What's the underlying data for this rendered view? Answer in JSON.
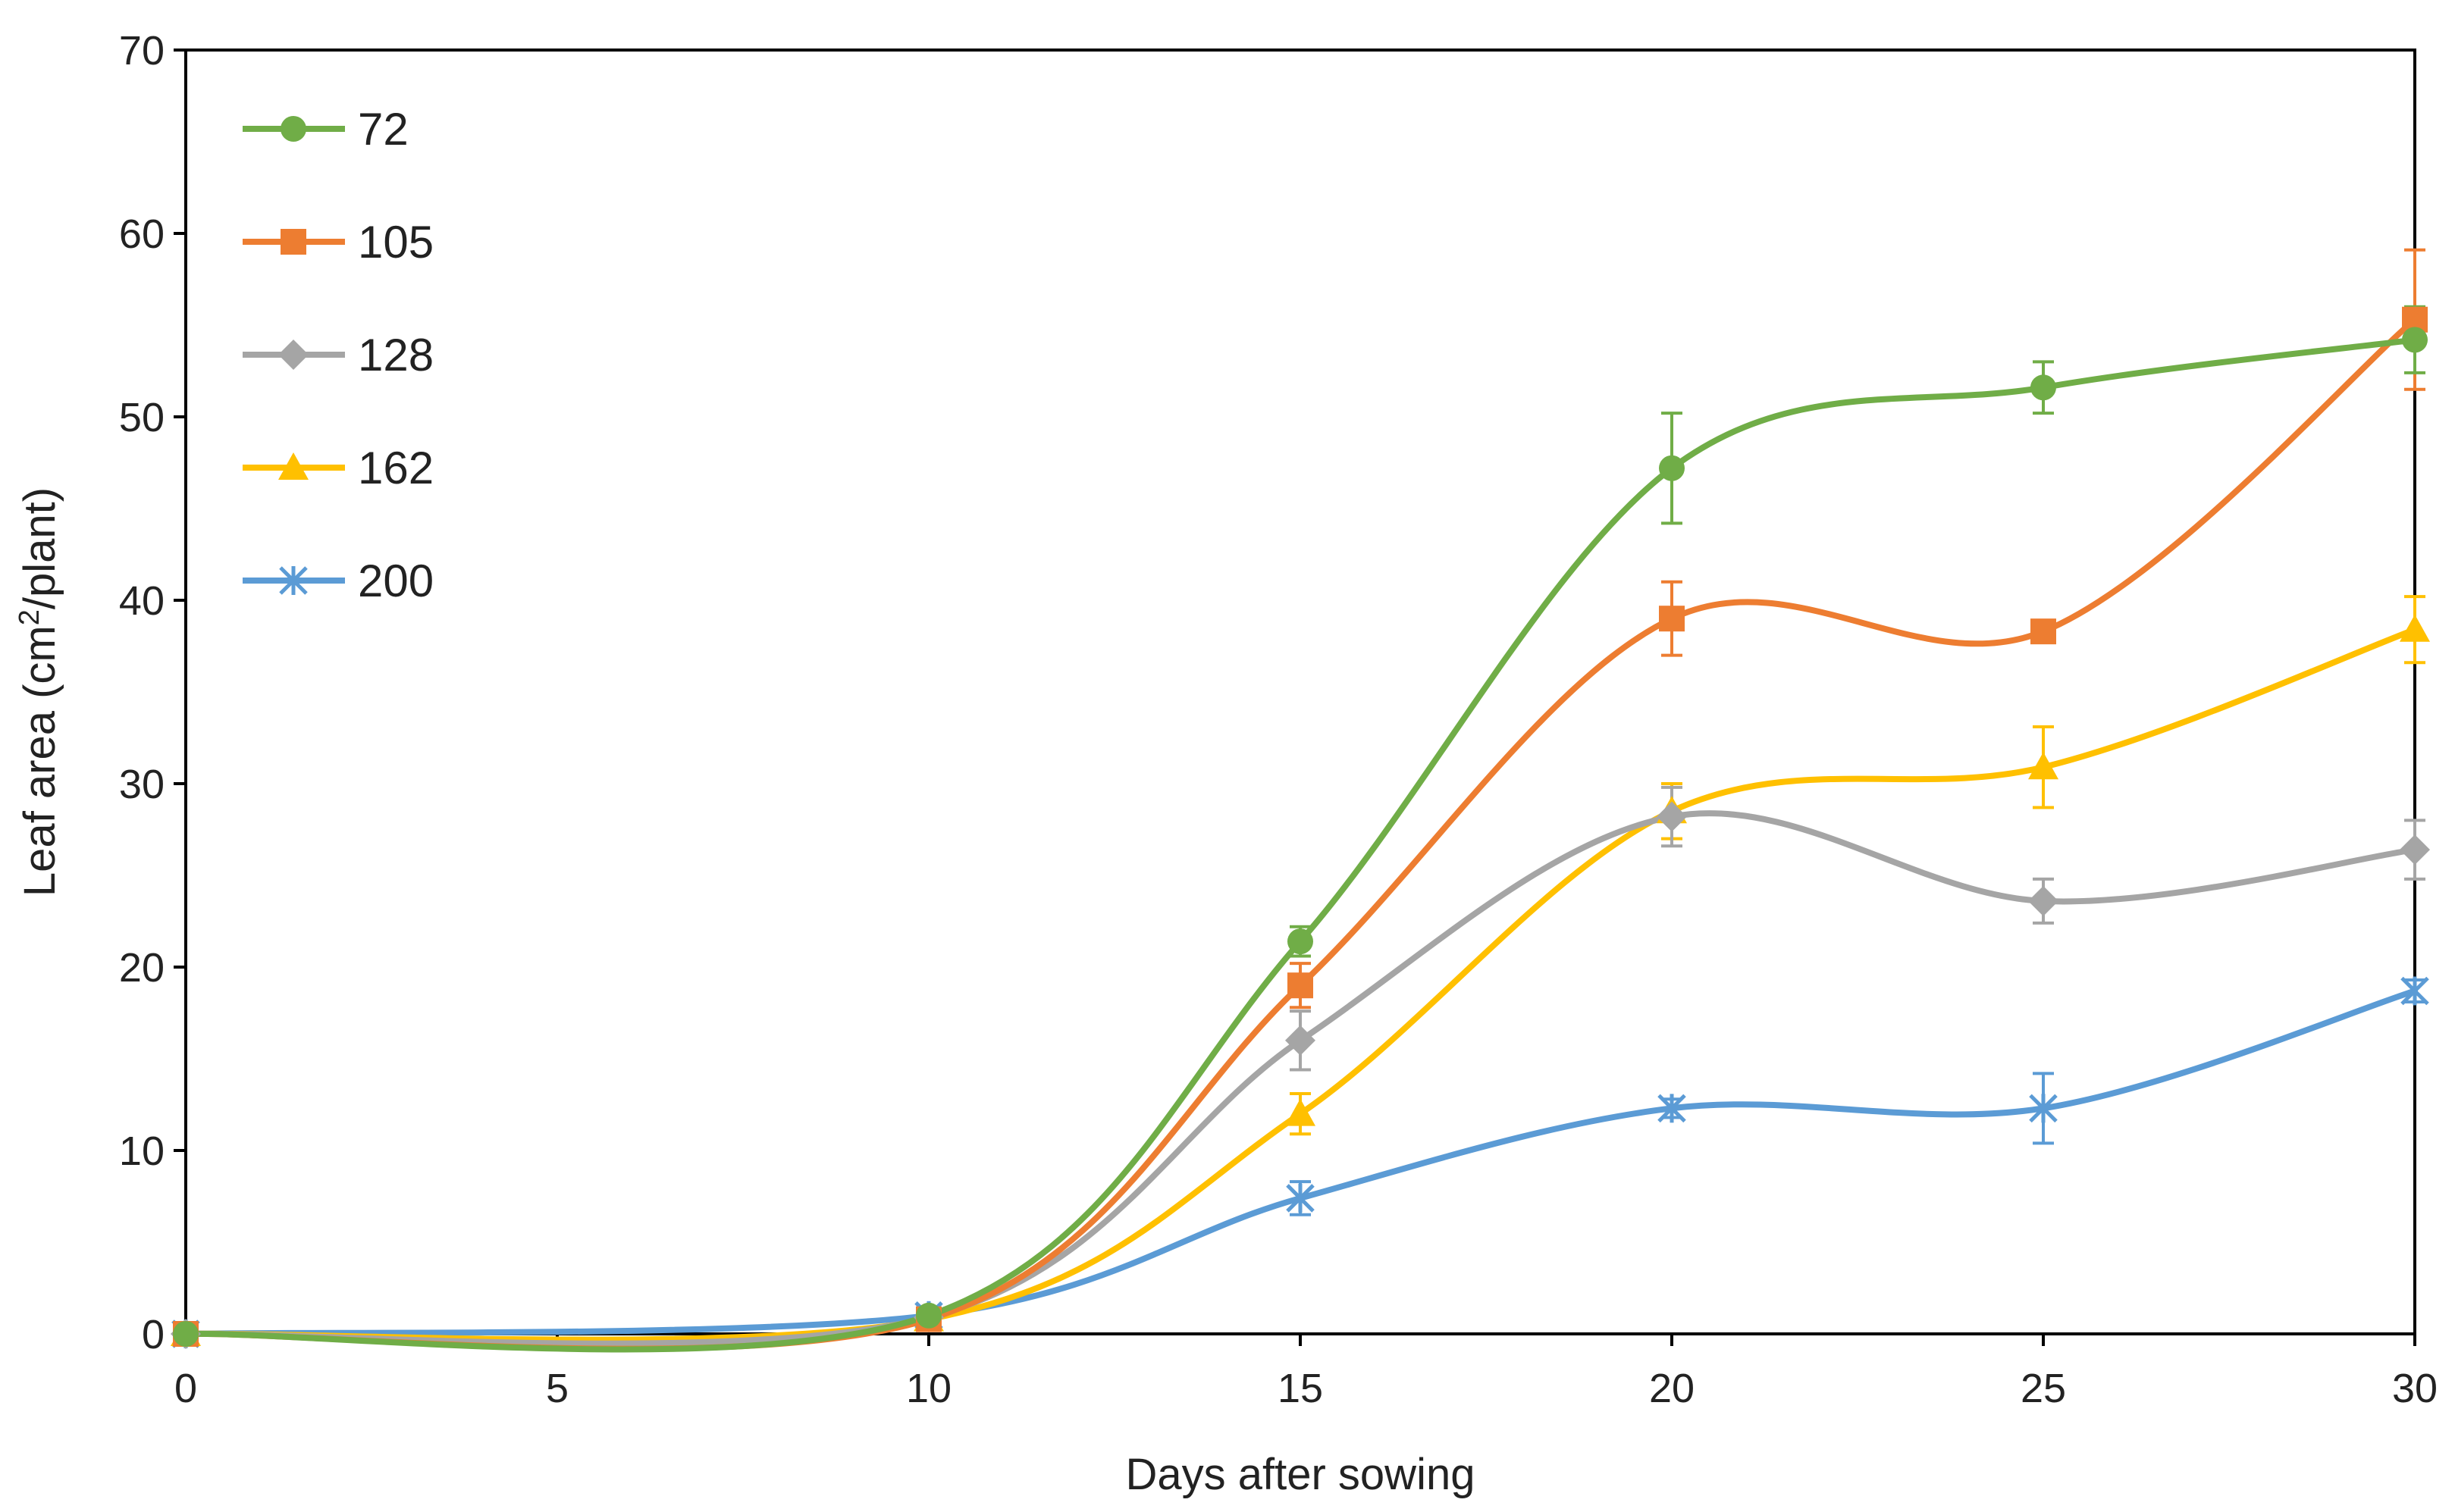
{
  "chart_data": {
    "type": "line",
    "title": "",
    "xlabel": "Days after sowing",
    "ylabel_main": "Leaf area (cm",
    "ylabel_sup": "2",
    "ylabel_tail": "/plant)",
    "xlim": [
      0,
      30
    ],
    "ylim": [
      0,
      70
    ],
    "x_ticks": [
      0,
      5,
      10,
      15,
      20,
      25,
      30
    ],
    "y_ticks": [
      0,
      10,
      20,
      30,
      40,
      50,
      60,
      70
    ],
    "grid": false,
    "legend_position": "top-left",
    "series": [
      {
        "name": "72",
        "color": "#70AD47",
        "marker": "circle",
        "x": [
          0,
          10,
          15,
          20,
          25,
          30
        ],
        "values": [
          0,
          1.0,
          21.4,
          47.2,
          51.6,
          54.2
        ],
        "errors": [
          0,
          0.3,
          0.8,
          3.0,
          1.4,
          1.8
        ]
      },
      {
        "name": "105",
        "color": "#ED7D31",
        "marker": "square",
        "x": [
          0,
          10,
          15,
          20,
          25,
          30
        ],
        "values": [
          0,
          0.8,
          19.0,
          39.0,
          38.3,
          55.3
        ],
        "errors": [
          0,
          0.3,
          1.2,
          2.0,
          0.6,
          3.8
        ]
      },
      {
        "name": "128",
        "color": "#A5A5A5",
        "marker": "diamond",
        "x": [
          0,
          10,
          15,
          20,
          25,
          30
        ],
        "values": [
          0,
          0.9,
          16.0,
          28.2,
          23.6,
          26.4
        ],
        "errors": [
          0,
          0.3,
          1.6,
          1.6,
          1.2,
          1.6
        ]
      },
      {
        "name": "162",
        "color": "#FFC000",
        "marker": "triangle",
        "x": [
          0,
          10,
          15,
          20,
          25,
          30
        ],
        "values": [
          0,
          0.8,
          12.0,
          28.5,
          30.9,
          38.4
        ],
        "errors": [
          0,
          0.3,
          1.1,
          1.5,
          2.2,
          1.8
        ]
      },
      {
        "name": "200",
        "color": "#5B9BD5",
        "marker": "star",
        "x": [
          0,
          10,
          15,
          20,
          25,
          30
        ],
        "values": [
          0,
          1.0,
          7.4,
          12.3,
          12.3,
          18.7
        ],
        "errors": [
          0,
          0.3,
          0.9,
          0.5,
          1.9,
          0.6
        ]
      }
    ]
  }
}
